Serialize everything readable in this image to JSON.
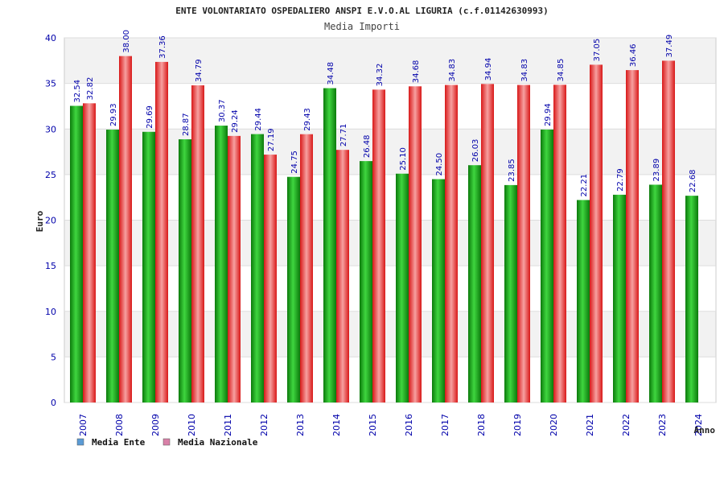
{
  "chart_data": {
    "type": "bar",
    "title": "ENTE VOLONTARIATO OSPEDALIERO ANSPI E.V.O.AL LIGURIA (c.f.01142630993)",
    "subtitle": "Media Importi",
    "xlabel": "Anno",
    "ylabel": "Euro",
    "ylim": [
      0,
      40
    ],
    "yticks": [
      "0",
      "5",
      "10",
      "15",
      "20",
      "25",
      "30",
      "35",
      "40"
    ],
    "categories": [
      "2007",
      "2008",
      "2009",
      "2010",
      "2011",
      "2012",
      "2013",
      "2014",
      "2015",
      "2016",
      "2017",
      "2018",
      "2019",
      "2020",
      "2021",
      "2022",
      "2023",
      "2024"
    ],
    "series": [
      {
        "name": "Media Ente",
        "color": "#22aa22",
        "values": [
          32.54,
          29.93,
          29.69,
          28.87,
          30.37,
          29.44,
          24.75,
          34.48,
          26.48,
          25.1,
          24.5,
          26.03,
          23.85,
          29.94,
          22.21,
          22.79,
          23.89,
          22.68
        ],
        "labels": [
          "32.54",
          "29.93",
          "29.69",
          "28.87",
          "30.37",
          "29.44",
          "24.75",
          "34.48",
          "26.48",
          "25.10",
          "24.50",
          "26.03",
          "23.85",
          "29.94",
          "22.21",
          "22.79",
          "23.89",
          "22.68"
        ]
      },
      {
        "name": "Media Nazionale",
        "color": "#ee2222",
        "values": [
          32.82,
          38.0,
          37.36,
          34.79,
          29.24,
          27.19,
          29.43,
          27.71,
          34.32,
          34.68,
          34.83,
          34.94,
          34.83,
          34.85,
          37.05,
          36.46,
          37.49,
          null
        ],
        "labels": [
          "32.82",
          "38.00",
          "37.36",
          "34.79",
          "29.24",
          "27.19",
          "29.43",
          "27.71",
          "34.32",
          "34.68",
          "34.83",
          "34.94",
          "34.83",
          "34.85",
          "37.05",
          "36.46",
          "37.49",
          null
        ]
      }
    ],
    "legend": {
      "position": "bottom-left",
      "items": [
        {
          "label": "Media Ente",
          "swatch_color": "#5b9bd5"
        },
        {
          "label": "Media Nazionale",
          "swatch_color": "#d980a8"
        }
      ]
    },
    "band_color": "#f2f2f2",
    "grid_color": "#dddddd"
  }
}
